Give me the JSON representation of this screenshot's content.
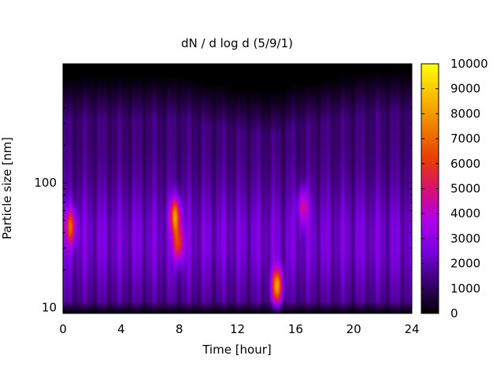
{
  "chart_data": {
    "type": "heatmap",
    "title": "dN / d log d (5/9/1)",
    "xlabel": "Time [hour]",
    "ylabel": "Particle size [nm]",
    "xlim": [
      0,
      24
    ],
    "ylim": [
      9,
      900
    ],
    "yscale": "log",
    "x_ticks": [
      0,
      4,
      8,
      12,
      16,
      20,
      24
    ],
    "y_ticks": [
      10,
      100
    ],
    "colorbar": {
      "range": [
        0,
        10000
      ],
      "ticks": [
        0,
        1000,
        2000,
        3000,
        4000,
        5000,
        6000,
        7000,
        8000,
        9000,
        10000
      ],
      "colormap": "gnuplot",
      "stops": [
        "#000000",
        "#3a0070",
        "#7a00e0",
        "#b000e8",
        "#d81070",
        "#e84000",
        "#f08000",
        "#f8c000",
        "#ffff00"
      ]
    },
    "background_level": 2300,
    "upper_edge_nm": [
      [
        0,
        700
      ],
      [
        1,
        720
      ],
      [
        2,
        740
      ],
      [
        3,
        720
      ],
      [
        4,
        740
      ],
      [
        5,
        720
      ],
      [
        6,
        750
      ],
      [
        7,
        720
      ],
      [
        8,
        740
      ],
      [
        9,
        700
      ],
      [
        10,
        640
      ],
      [
        11,
        620
      ],
      [
        12,
        580
      ],
      [
        13,
        570
      ],
      [
        14,
        540
      ],
      [
        15,
        560
      ],
      [
        16,
        640
      ],
      [
        17,
        660
      ],
      [
        18,
        690
      ],
      [
        19,
        720
      ],
      [
        20,
        760
      ],
      [
        21,
        800
      ],
      [
        22,
        800
      ],
      [
        23,
        800
      ],
      [
        24,
        800
      ]
    ],
    "hotspots": [
      {
        "x": 0.5,
        "d_nm": 45,
        "value": 5800
      },
      {
        "x": 7.7,
        "d_nm": 55,
        "value": 6900
      },
      {
        "x": 7.9,
        "d_nm": 33,
        "value": 5500
      },
      {
        "x": 14.7,
        "d_nm": 15,
        "value": 7800
      },
      {
        "x": 16.5,
        "d_nm": 65,
        "value": 4200
      }
    ]
  }
}
